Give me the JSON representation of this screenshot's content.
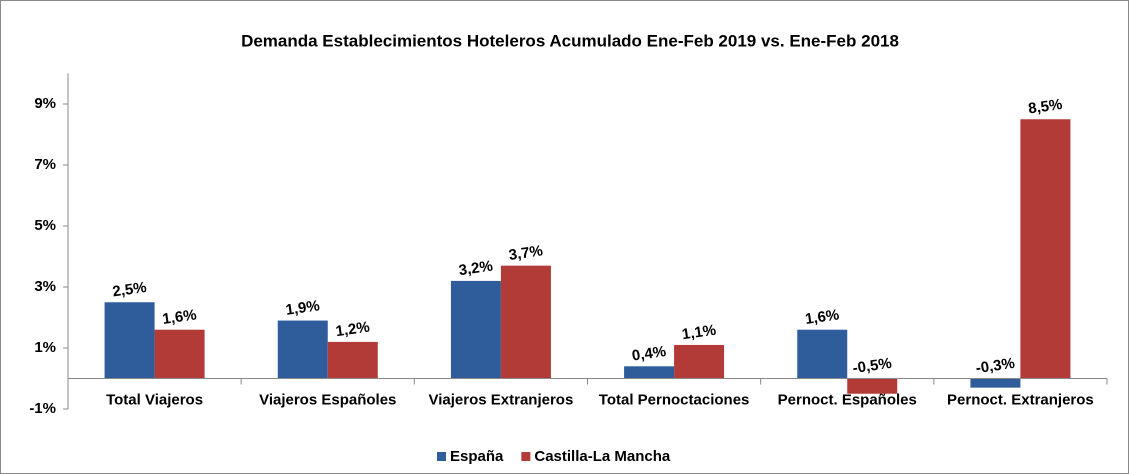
{
  "chart_data": {
    "type": "bar",
    "title": "Demanda Establecimientos Hoteleros Acumulado  Ene-Feb 2019 vs. Ene-Feb 2018",
    "categories": [
      "Total Viajeros",
      "Viajeros Españoles",
      "Viajeros Extranjeros",
      "Total Pernoctaciones",
      "Pernoct. Españoles",
      "Pernoct. Extranjeros"
    ],
    "series": [
      {
        "name": "España",
        "color": "#2f5d9c",
        "values": [
          2.5,
          1.9,
          3.2,
          0.4,
          1.6,
          -0.3
        ],
        "value_labels": [
          "2,5%",
          "1,9%",
          "3,2%",
          "0,4%",
          "1,6%",
          "-0,3%"
        ]
      },
      {
        "name": "Castilla-La Mancha",
        "color": "#b23b37",
        "values": [
          1.6,
          1.2,
          3.7,
          1.1,
          -0.5,
          8.5
        ],
        "value_labels": [
          "1,6%",
          "1,2%",
          "3,7%",
          "1,1%",
          "-0,5%",
          "8,5%"
        ]
      }
    ],
    "ylim": [
      -1,
      10
    ],
    "yticks": [
      {
        "value": -1,
        "label": "-1%"
      },
      {
        "value": 1,
        "label": "1%"
      },
      {
        "value": 3,
        "label": "3%"
      },
      {
        "value": 5,
        "label": "5%"
      },
      {
        "value": 7,
        "label": "7%"
      },
      {
        "value": 9,
        "label": "9%"
      }
    ],
    "grid": false,
    "negative_label_color": "#ff0000",
    "legend": "bottom"
  }
}
